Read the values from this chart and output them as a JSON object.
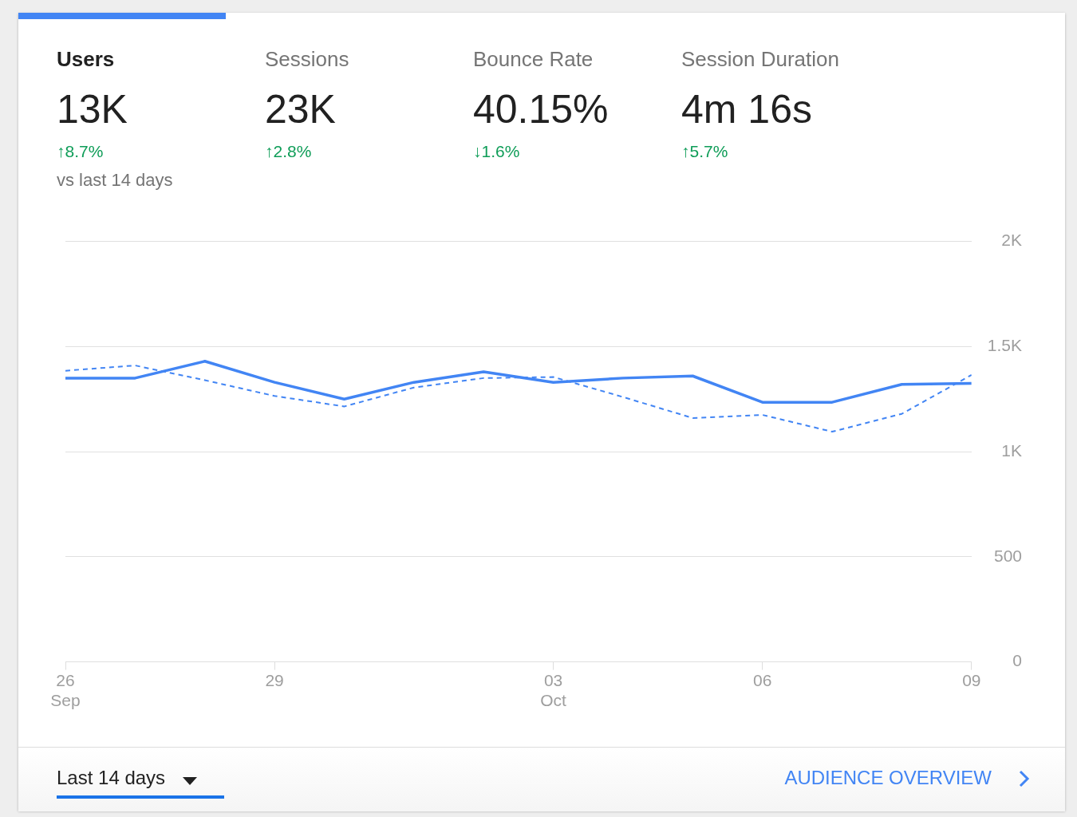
{
  "chart_data": [
    {
      "type": "other",
      "annotations": [
        "Users",
        "13K",
        "↑8.7%",
        "Sessions",
        "23K",
        "↑2.8%",
        "Bounce Rate",
        "40.15%",
        "↓1.6%",
        "Session Duration",
        "4m 16s",
        "↑5.7%",
        "vs last 14 days",
        "Last 14 days",
        "AUDIENCE OVERVIEW"
      ]
    },
    {
      "type": "line",
      "x": [
        "--09-26",
        "--09-27",
        "--09-28",
        "--09-29",
        "--09-30",
        "--10-01",
        "--10-02",
        "--10-03",
        "--10-04",
        "--10-05",
        "--10-06",
        "--10-07",
        "--10-08",
        "--10-09"
      ],
      "series": [
        {
          "color": "#4285f4",
          "line_style": "solid",
          "values": [
            1350,
            1350,
            1430,
            1330,
            1250,
            1330,
            1380,
            1330,
            1350,
            1360,
            1235,
            1235,
            1320,
            1325
          ]
        },
        {
          "color": "#4285f4",
          "line_style": "dashed",
          "values": [
            1385,
            1410,
            1340,
            1265,
            1215,
            1305,
            1350,
            1355,
            1260,
            1160,
            1175,
            1095,
            1180,
            1365
          ]
        }
      ],
      "xlim": [
        "--09-26",
        "--10-09"
      ],
      "xticks": [
        {
          "value": "--09-26",
          "label": "26 Sep"
        },
        {
          "value": "--09-29",
          "label": "29"
        },
        {
          "value": "--10-03",
          "label": "03 Oct"
        },
        {
          "value": "--10-06",
          "label": "06"
        },
        {
          "value": "--10-09",
          "label": "09"
        }
      ],
      "ylim": [
        0,
        2000
      ],
      "yticks": [
        0,
        500,
        {
          "value": 1000,
          "label": "1K"
        },
        {
          "value": 1500,
          "label": "1.5K"
        },
        {
          "value": 2000,
          "label": "2K"
        }
      ],
      "grid": "y",
      "legend": false,
      "marker": "none"
    }
  ]
}
